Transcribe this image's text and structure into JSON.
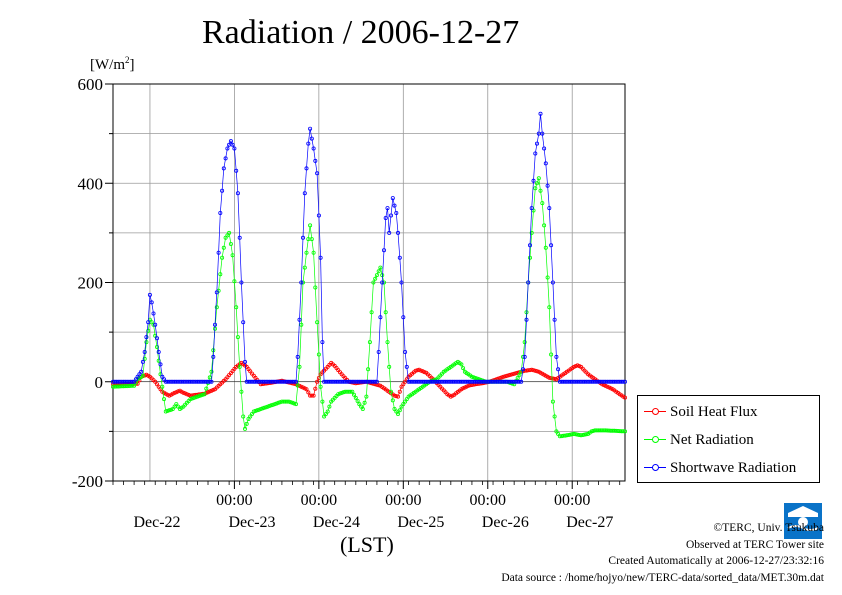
{
  "chart_data": {
    "type": "line",
    "title": "Radiation / 2006-12-27",
    "ylabel_unit": "[W/m2]",
    "xlabel": "(LST)",
    "ylim": [
      -200,
      600
    ],
    "yticks": [
      "-200",
      "0",
      "200",
      "400",
      "600"
    ],
    "xticks": [
      {
        "time": "",
        "date": "Dec-22"
      },
      {
        "time": "00:00",
        "date": "Dec-23"
      },
      {
        "time": "00:00",
        "date": "Dec-24"
      },
      {
        "time": "00:00",
        "date": "Dec-25"
      },
      {
        "time": "00:00",
        "date": "Dec-26"
      },
      {
        "time": "00:00",
        "date": "Dec-27"
      }
    ],
    "grid": true,
    "legend_position": "bottom-right",
    "series": [
      {
        "name": "Soil Heat Flux",
        "color": "#ff0000",
        "points": [
          [
            0,
            -5
          ],
          [
            7,
            -4
          ],
          [
            8,
            10
          ],
          [
            9.5,
            14
          ],
          [
            10.5,
            10
          ],
          [
            12,
            0
          ],
          [
            14,
            -20
          ],
          [
            16,
            -28
          ],
          [
            17,
            -24
          ],
          [
            19,
            -18
          ],
          [
            20,
            -22
          ],
          [
            22,
            -28
          ],
          [
            24,
            -26
          ],
          [
            26,
            -24
          ],
          [
            29,
            -15
          ],
          [
            32,
            5
          ],
          [
            35,
            30
          ],
          [
            36.5,
            38
          ],
          [
            38,
            30
          ],
          [
            40,
            12
          ],
          [
            42,
            -5
          ],
          [
            45,
            -2
          ],
          [
            48,
            2
          ],
          [
            52,
            -5
          ],
          [
            55,
            -15
          ],
          [
            56,
            -28
          ],
          [
            57,
            -28
          ],
          [
            58,
            0
          ],
          [
            59,
            15
          ],
          [
            61,
            30
          ],
          [
            62,
            38
          ],
          [
            63,
            32
          ],
          [
            65,
            15
          ],
          [
            67,
            0
          ],
          [
            69,
            -3
          ],
          [
            72,
            0
          ],
          [
            76,
            -8
          ],
          [
            80,
            -28
          ],
          [
            81,
            -30
          ],
          [
            82,
            -10
          ],
          [
            84,
            10
          ],
          [
            86,
            22
          ],
          [
            87,
            24
          ],
          [
            89,
            18
          ],
          [
            91,
            5
          ],
          [
            93,
            -10
          ],
          [
            95,
            -25
          ],
          [
            96,
            -30
          ],
          [
            97,
            -26
          ],
          [
            99,
            -15
          ],
          [
            101,
            -8
          ],
          [
            103,
            -5
          ],
          [
            105,
            -3
          ],
          [
            107,
            0
          ],
          [
            109,
            5
          ],
          [
            111,
            10
          ],
          [
            113,
            14
          ],
          [
            115,
            18
          ],
          [
            117,
            22
          ],
          [
            119,
            24
          ],
          [
            121,
            20
          ],
          [
            123,
            12
          ],
          [
            124,
            8
          ],
          [
            126,
            5
          ],
          [
            128,
            15
          ],
          [
            131,
            30
          ],
          [
            132,
            33
          ],
          [
            133,
            30
          ],
          [
            135,
            15
          ],
          [
            137,
            5
          ],
          [
            139,
            -5
          ],
          [
            142,
            -15
          ],
          [
            144,
            -25
          ],
          [
            145,
            -30
          ],
          [
            145.5,
            -32
          ]
        ]
      },
      {
        "name": "Net Radiation",
        "color": "#00ff00",
        "points": [
          [
            0,
            -10
          ],
          [
            6,
            -8
          ],
          [
            7,
            5
          ],
          [
            8.5,
            12
          ],
          [
            9.5,
            80
          ],
          [
            10.5,
            125
          ],
          [
            11.5,
            115
          ],
          [
            12.5,
            70
          ],
          [
            13.5,
            15
          ],
          [
            15,
            -60
          ],
          [
            17,
            -55
          ],
          [
            18,
            -45
          ],
          [
            19,
            -55
          ],
          [
            20,
            -50
          ],
          [
            22,
            -35
          ],
          [
            24,
            -30
          ],
          [
            26,
            -25
          ],
          [
            28,
            20
          ],
          [
            29.5,
            150
          ],
          [
            31,
            250
          ],
          [
            32,
            290
          ],
          [
            33,
            300
          ],
          [
            34,
            255
          ],
          [
            35,
            150
          ],
          [
            36,
            30
          ],
          [
            37,
            -70
          ],
          [
            37.5,
            -95
          ],
          [
            38.5,
            -75
          ],
          [
            40,
            -60
          ],
          [
            42,
            -55
          ],
          [
            44,
            -50
          ],
          [
            46,
            -45
          ],
          [
            48,
            -40
          ],
          [
            50,
            -40
          ],
          [
            52,
            -45
          ],
          [
            53,
            30
          ],
          [
            54,
            200
          ],
          [
            55,
            260
          ],
          [
            56,
            315
          ],
          [
            57,
            260
          ],
          [
            58,
            120
          ],
          [
            59,
            -10
          ],
          [
            60,
            -70
          ],
          [
            61,
            -60
          ],
          [
            62,
            -40
          ],
          [
            64,
            -25
          ],
          [
            66,
            -20
          ],
          [
            68,
            -20
          ],
          [
            70,
            -45
          ],
          [
            71,
            -55
          ],
          [
            72,
            -30
          ],
          [
            73,
            80
          ],
          [
            74,
            200
          ],
          [
            75,
            215
          ],
          [
            76,
            230
          ],
          [
            77,
            200
          ],
          [
            78,
            80
          ],
          [
            79,
            -20
          ],
          [
            80,
            -55
          ],
          [
            81,
            -65
          ],
          [
            82,
            -50
          ],
          [
            84,
            -30
          ],
          [
            86,
            -20
          ],
          [
            88,
            -10
          ],
          [
            90,
            0
          ],
          [
            92,
            5
          ],
          [
            94,
            20
          ],
          [
            96,
            30
          ],
          [
            98,
            40
          ],
          [
            99,
            35
          ],
          [
            100,
            20
          ],
          [
            102,
            10
          ],
          [
            104,
            5
          ],
          [
            106,
            0
          ],
          [
            108,
            0
          ],
          [
            110,
            0
          ],
          [
            112,
            0
          ],
          [
            114,
            -5
          ],
          [
            116,
            20
          ],
          [
            117,
            80
          ],
          [
            118,
            200
          ],
          [
            119,
            300
          ],
          [
            120,
            390
          ],
          [
            121,
            410
          ],
          [
            122,
            360
          ],
          [
            123,
            270
          ],
          [
            124,
            150
          ],
          [
            125,
            -40
          ],
          [
            126,
            -100
          ],
          [
            127,
            -110
          ],
          [
            129,
            -108
          ],
          [
            131,
            -105
          ],
          [
            133,
            -108
          ],
          [
            135,
            -105
          ],
          [
            136,
            -100
          ],
          [
            137,
            -98
          ],
          [
            140,
            -98
          ],
          [
            145.5,
            -100
          ]
        ]
      },
      {
        "name": "Shortwave Radiation",
        "color": "#0000ff",
        "points": [
          [
            0,
            0
          ],
          [
            6,
            0
          ],
          [
            7,
            10
          ],
          [
            8,
            20
          ],
          [
            9,
            60
          ],
          [
            10,
            120
          ],
          [
            10.5,
            175
          ],
          [
            11,
            160
          ],
          [
            12,
            115
          ],
          [
            13,
            60
          ],
          [
            14,
            10
          ],
          [
            15,
            0
          ],
          [
            28,
            0
          ],
          [
            28.5,
            50
          ],
          [
            29.5,
            180
          ],
          [
            30.5,
            340
          ],
          [
            31.5,
            430
          ],
          [
            32.5,
            470
          ],
          [
            33.5,
            485
          ],
          [
            34.5,
            470
          ],
          [
            35.5,
            380
          ],
          [
            36.5,
            200
          ],
          [
            37.5,
            40
          ],
          [
            38,
            0
          ],
          [
            52,
            0
          ],
          [
            52.5,
            50
          ],
          [
            53.5,
            200
          ],
          [
            54.5,
            380
          ],
          [
            55.5,
            480
          ],
          [
            56,
            510
          ],
          [
            57,
            470
          ],
          [
            58,
            420
          ],
          [
            59,
            250
          ],
          [
            59.5,
            80
          ],
          [
            60,
            0
          ],
          [
            75,
            0
          ],
          [
            75.5,
            60
          ],
          [
            76.5,
            200
          ],
          [
            77.5,
            330
          ],
          [
            78,
            350
          ],
          [
            78.5,
            300
          ],
          [
            79.5,
            370
          ],
          [
            80.5,
            340
          ],
          [
            81,
            300
          ],
          [
            82,
            200
          ],
          [
            83,
            60
          ],
          [
            84,
            0
          ],
          [
            116,
            0
          ],
          [
            117,
            50
          ],
          [
            118,
            200
          ],
          [
            119,
            350
          ],
          [
            120,
            460
          ],
          [
            121,
            500
          ],
          [
            121.5,
            540
          ],
          [
            122,
            500
          ],
          [
            123,
            440
          ],
          [
            124,
            350
          ],
          [
            125,
            200
          ],
          [
            126,
            50
          ],
          [
            127,
            0
          ],
          [
            145.5,
            0
          ]
        ]
      }
    ]
  },
  "footer": {
    "copyright": "©TERC, Univ. Tsukuba",
    "site": "Observed at TERC Tower site",
    "created": "Created Automatically at 2006-12-27/23:32:16",
    "source": "Data source : /home/hojyo/new/TERC-data/sorted_data/MET.30m.dat",
    "logo_text": "TERC"
  }
}
